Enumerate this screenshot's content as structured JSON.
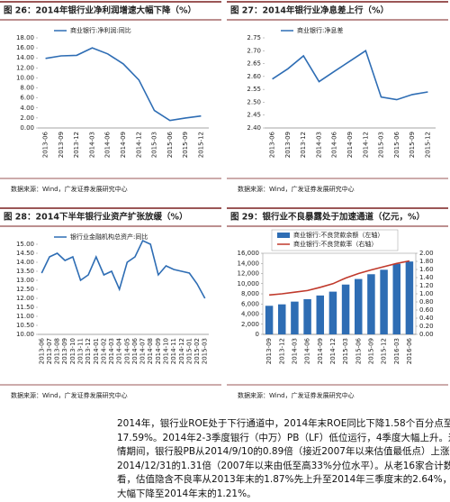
{
  "chart_data": [
    {
      "type": "line",
      "title": "图 26：2014年银行业净利润增速大幅下降（%）",
      "source": "数据来源：Wind，广发证券发展研究中心",
      "categories": [
        "2013-06",
        "2013-09",
        "2013-12",
        "2014-03",
        "2014-06",
        "2014-09",
        "2014-12",
        "2015-03",
        "2015-06",
        "2015-09",
        "2015-12"
      ],
      "series": [
        {
          "name": "商业银行:净利润:同比",
          "color": "#2e6db4",
          "values": [
            13.9,
            14.4,
            14.5,
            16.0,
            14.8,
            12.8,
            9.6,
            3.5,
            1.5,
            2.0,
            2.4
          ]
        }
      ],
      "ylim": [
        0,
        18
      ],
      "yticks": [
        {
          "value": 0,
          "label": "0.00"
        },
        {
          "value": 2,
          "label": "2.00"
        },
        {
          "value": 4,
          "label": "4.00"
        },
        {
          "value": 6,
          "label": "6.00"
        },
        {
          "value": 8,
          "label": "8.00"
        },
        {
          "value": 10,
          "label": "10.00"
        },
        {
          "value": 12,
          "label": "12.00"
        },
        {
          "value": 14,
          "label": "14.00"
        },
        {
          "value": 16,
          "label": "16.00"
        },
        {
          "value": 18,
          "label": "18.00"
        }
      ]
    },
    {
      "type": "line",
      "title": "图 27：2014年银行业净息差上行（%）",
      "source": "数据来源：Wind，广发证券发展研究中心",
      "categories": [
        "2013-06",
        "2013-09",
        "2013-12",
        "2014-03",
        "2014-06",
        "2014-09",
        "2014-12",
        "2015-03",
        "2015-06",
        "2015-09",
        "2015-12"
      ],
      "series": [
        {
          "name": "商业银行:净息差",
          "color": "#2e6db4",
          "values": [
            2.59,
            2.63,
            2.68,
            2.58,
            2.62,
            2.66,
            2.7,
            2.52,
            2.51,
            2.53,
            2.54
          ]
        }
      ],
      "ylim": [
        2.4,
        2.75
      ],
      "yticks": [
        {
          "value": 2.4,
          "label": "2.40"
        },
        {
          "value": 2.45,
          "label": "2.45"
        },
        {
          "value": 2.5,
          "label": "2.50"
        },
        {
          "value": 2.55,
          "label": "2.55"
        },
        {
          "value": 2.6,
          "label": "2.60"
        },
        {
          "value": 2.65,
          "label": "2.65"
        },
        {
          "value": 2.7,
          "label": "2.70"
        },
        {
          "value": 2.75,
          "label": "2.75"
        }
      ]
    },
    {
      "type": "line",
      "title": "图 28：2014下半年银行业资产扩张放缓（%）",
      "source": "数据来源：Wind，广发证券发展研究中心",
      "categories": [
        "2013-06",
        "2013-07",
        "2013-08",
        "2013-09",
        "2013-10",
        "2013-11",
        "2013-12",
        "2014-01",
        "2014-02",
        "2014-03",
        "2014-04",
        "2014-05",
        "2014-06",
        "2014-07",
        "2014-08",
        "2014-09",
        "2014-10",
        "2014-11",
        "2014-12",
        "2015-01",
        "2015-02",
        "2015-03"
      ],
      "series": [
        {
          "name": "银行业金融机构总资产:同比",
          "color": "#2e6db4",
          "values": [
            13.4,
            14.3,
            14.5,
            14.1,
            14.3,
            13.0,
            13.3,
            14.3,
            13.3,
            13.5,
            12.5,
            14.0,
            14.3,
            15.2,
            15.0,
            13.3,
            13.8,
            13.6,
            13.5,
            13.4,
            12.8,
            12.0
          ]
        }
      ],
      "ylim": [
        10,
        15
      ],
      "yticks": [
        {
          "value": 10,
          "label": "10.00"
        },
        {
          "value": 10.5,
          "label": "10.50"
        },
        {
          "value": 11,
          "label": "11.00"
        },
        {
          "value": 11.5,
          "label": "11.50"
        },
        {
          "value": 12,
          "label": "12.00"
        },
        {
          "value": 12.5,
          "label": "12.50"
        },
        {
          "value": 13,
          "label": "13.00"
        },
        {
          "value": 13.5,
          "label": "13.50"
        },
        {
          "value": 14,
          "label": "14.00"
        },
        {
          "value": 14.5,
          "label": "14.50"
        },
        {
          "value": 15,
          "label": "15.00"
        }
      ]
    },
    {
      "type": "bar",
      "title": "图 29：银行业不良暴露处于加速通道（亿元，%）",
      "source": "数据来源：Wind，广发证券发展研究中心",
      "categories": [
        "2013-09",
        "2013-12",
        "2014-03",
        "2014-06",
        "2014-09",
        "2014-12",
        "2015-03",
        "2015-06",
        "2015-09",
        "2015-12",
        "2016-03",
        "2016-06"
      ],
      "series": [
        {
          "name": "商业银行:不良贷款余额（左轴）",
          "color": "#2e6db4",
          "values": [
            5636,
            5921,
            6461,
            6944,
            7669,
            8426,
            9825,
            10919,
            11863,
            12744,
            13921,
            14373
          ]
        },
        {
          "name": "商业银行:不良贷款率（右轴）",
          "color": "#c0392b",
          "type": "line",
          "axis": "y2",
          "values": [
            0.97,
            1.0,
            1.04,
            1.08,
            1.16,
            1.25,
            1.39,
            1.5,
            1.59,
            1.67,
            1.75,
            1.81
          ]
        }
      ],
      "ylim": [
        0,
        16000
      ],
      "yticks": [
        0,
        {
          "value": 2000,
          "label": "2,000"
        },
        {
          "value": 4000,
          "label": "4,000"
        },
        {
          "value": 6000,
          "label": "6,000"
        },
        {
          "value": 8000,
          "label": "8,000"
        },
        {
          "value": 10000,
          "label": "10,000"
        },
        {
          "value": 12000,
          "label": "12,000"
        },
        {
          "value": 14000,
          "label": "14,000"
        },
        {
          "value": 16000,
          "label": "16,000"
        }
      ],
      "y2lim": [
        0,
        2
      ],
      "y2ticks": [
        {
          "value": 0,
          "label": "0.00"
        },
        {
          "value": 0.2,
          "label": "0.20"
        },
        {
          "value": 0.4,
          "label": "0.40"
        },
        {
          "value": 0.6,
          "label": "0.60"
        },
        {
          "value": 0.8,
          "label": "0.80"
        },
        {
          "value": 1,
          "label": "1.00"
        },
        {
          "value": 1.2,
          "label": "1.20"
        },
        {
          "value": 1.4,
          "label": "1.40"
        },
        {
          "value": 1.6,
          "label": "1.60"
        },
        {
          "value": 1.8,
          "label": "1.80"
        },
        {
          "value": 2,
          "label": "2.00"
        }
      ]
    }
  ],
  "paragraph": [
    "2014年，银行业ROE处于下行通道中，2014年末ROE同比下降1.58个百分点至",
    "17.59%。2014年2-3季度银行（中万）PB（LF）低位运行，4季度大幅上升。这波行",
    "情期间，银行股PB从2014/9/10的0.89倍（接近2007年以来估值最低点）上涨至",
    "2014/12/31的1.31倍（2007年以来由低至高33%分位水平）。从老16家合计数据来",
    "看，估值隐含不良率从2013年末的1.87%先上升至2014年三季度末的2.64%，随后",
    "大幅下降至2014年末的1.21%。"
  ]
}
